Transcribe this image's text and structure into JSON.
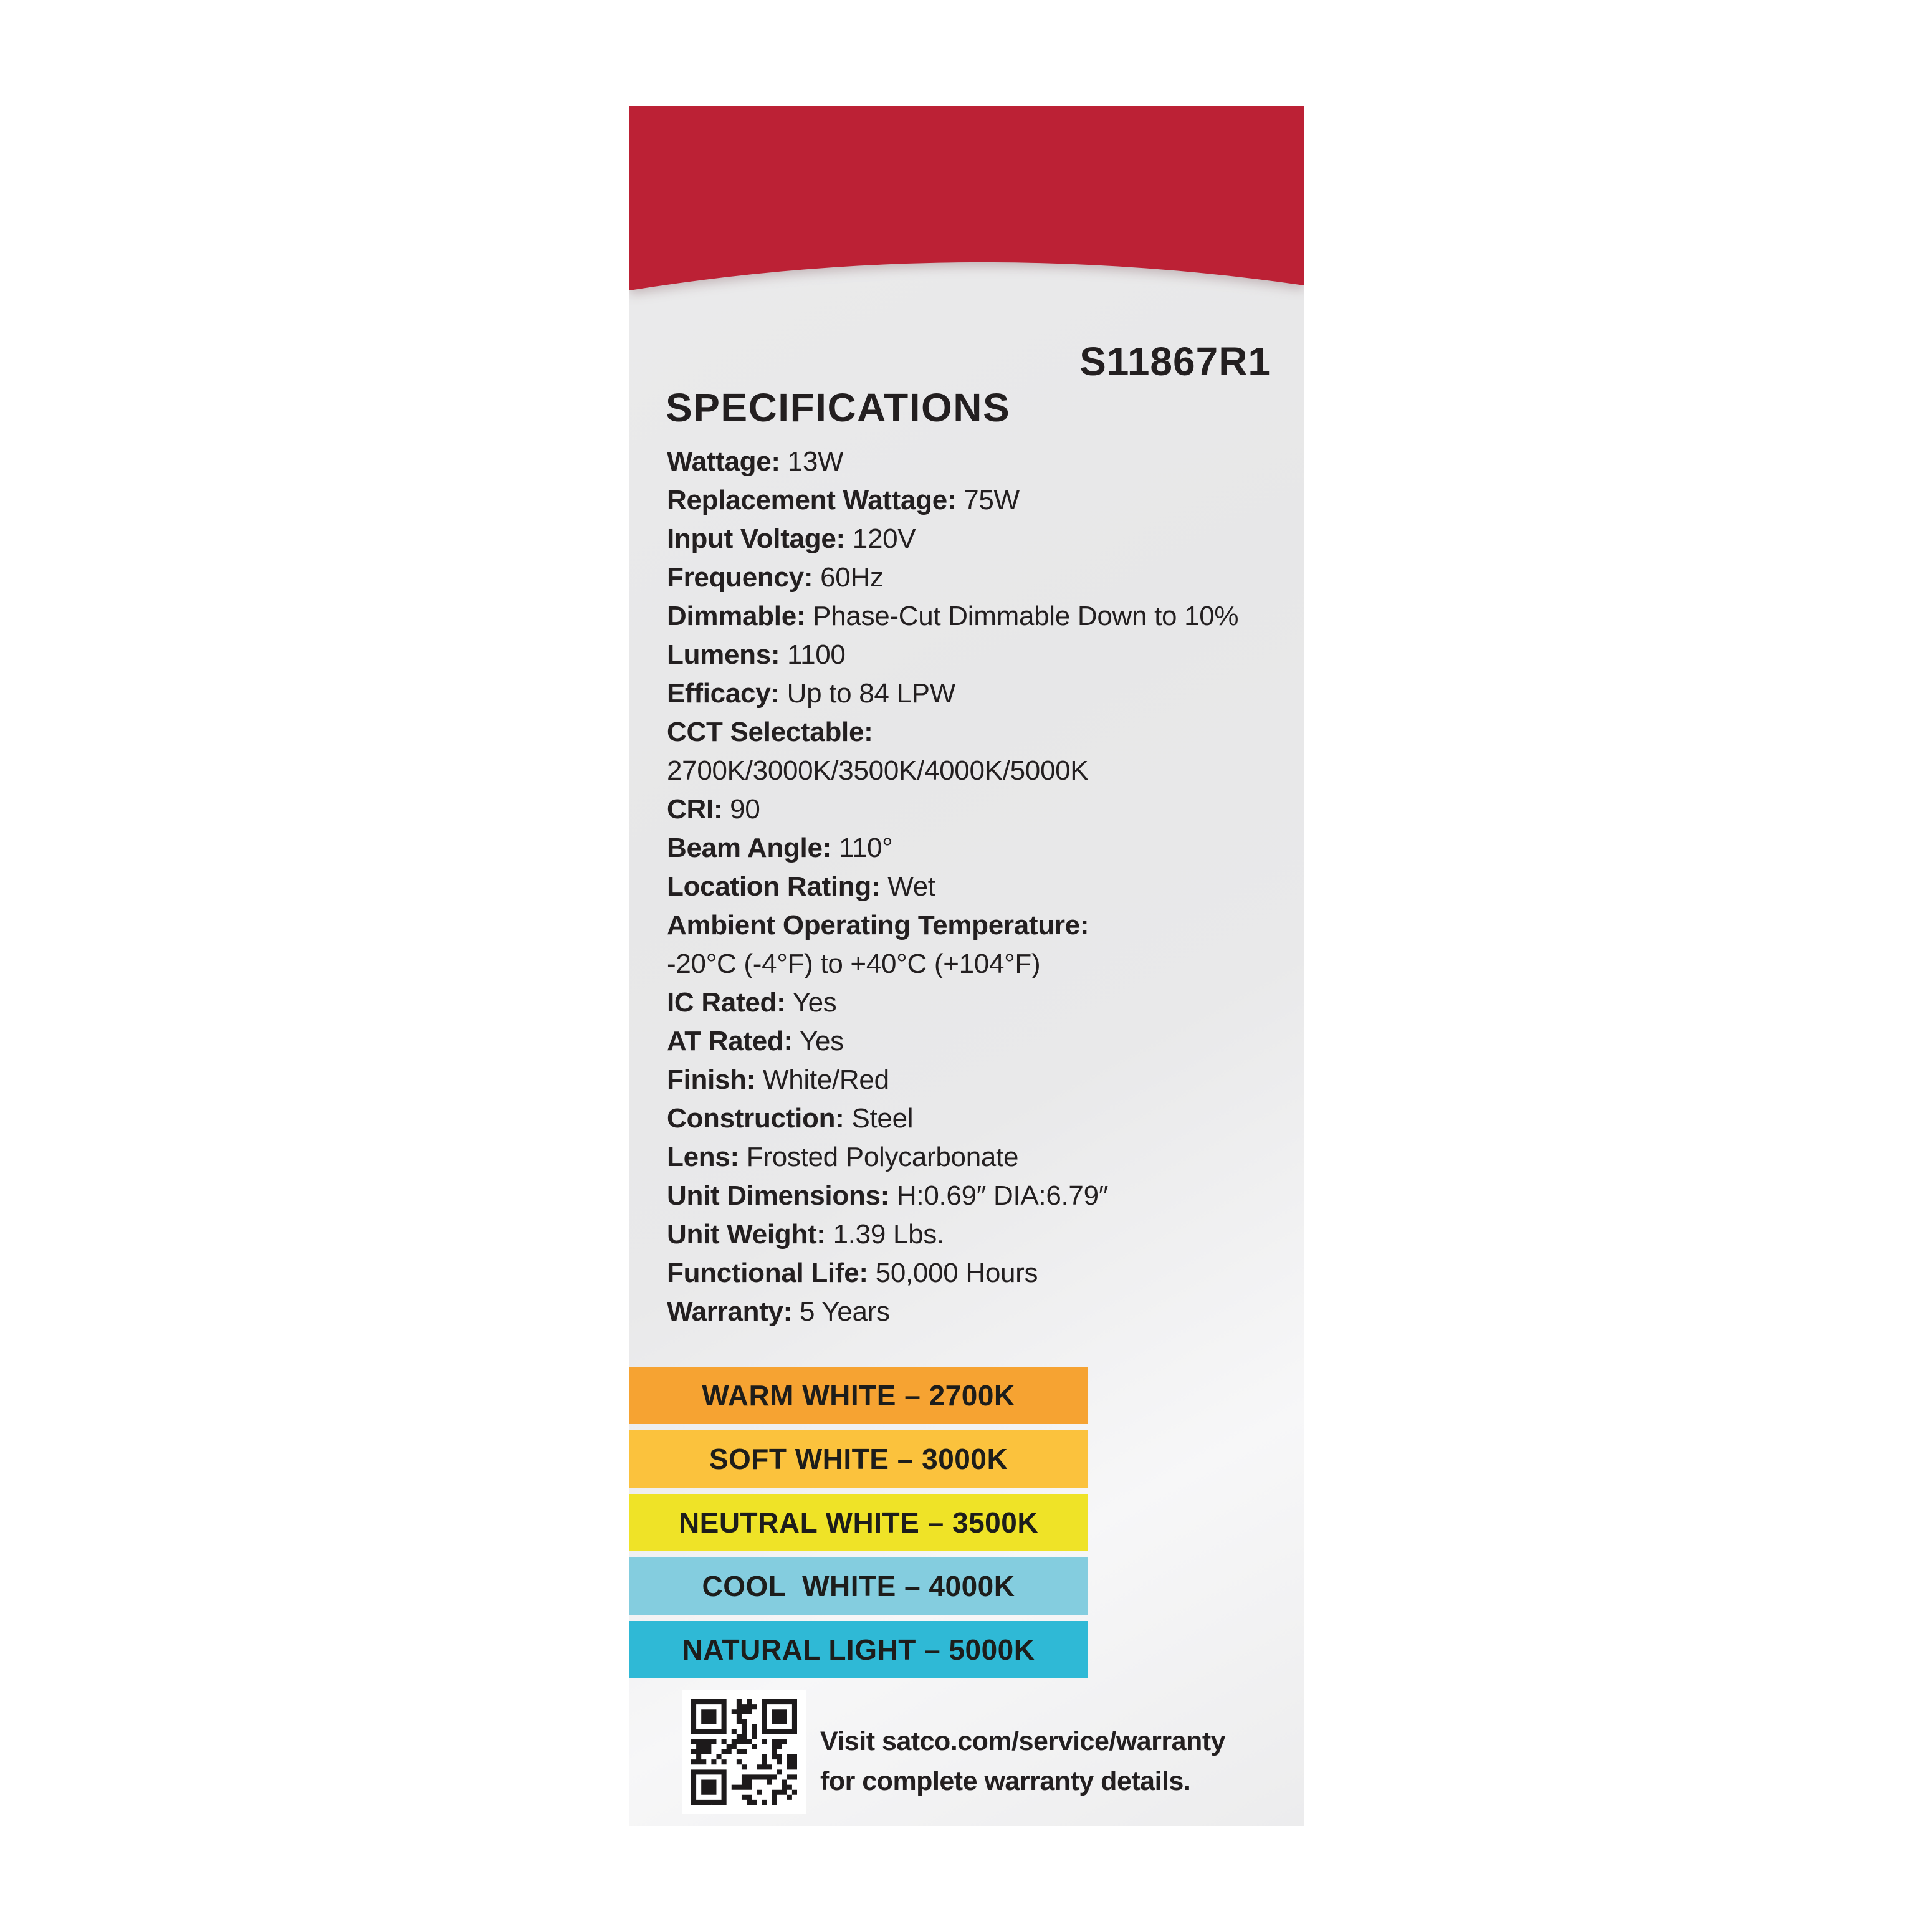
{
  "page": {
    "background": "#FFFFFF"
  },
  "label": {
    "product_code": "S11867R1",
    "heading": "SPECIFICATIONS",
    "brand_red": "#BC2135",
    "text_color": "#231F20",
    "specs": [
      {
        "label": "Wattage:",
        "value": "13W"
      },
      {
        "label": "Replacement Wattage:",
        "value": "75W"
      },
      {
        "label": "Input Voltage:",
        "value": "120V"
      },
      {
        "label": "Frequency:",
        "value": "60Hz"
      },
      {
        "label": "Dimmable:",
        "value": "Phase-Cut Dimmable Down to 10%"
      },
      {
        "label": "Lumens:",
        "value": "1100"
      },
      {
        "label": "Efficacy:",
        "value": "Up to 84 LPW"
      },
      {
        "label": "CCT Selectable:",
        "value": "2700K/3000K/3500K/4000K/5000K",
        "wrap": true
      },
      {
        "label": "CRI:",
        "value": "90"
      },
      {
        "label": "Beam Angle:",
        "value": "110°"
      },
      {
        "label": "Location Rating:",
        "value": "Wet"
      },
      {
        "label": "Ambient Operating Temperature:",
        "value": "-20°C (-4°F) to +40°C (+104°F)",
        "wrap": true
      },
      {
        "label": "IC Rated:",
        "value": "Yes"
      },
      {
        "label": "AT Rated:",
        "value": "Yes"
      },
      {
        "label": "Finish:",
        "value": "White/Red"
      },
      {
        "label": "Construction:",
        "value": "Steel"
      },
      {
        "label": "Lens:",
        "value": "Frosted Polycarbonate"
      },
      {
        "label": "Unit Dimensions:",
        "value": "H:0.69″ DIA:6.79″"
      },
      {
        "label": "Unit Weight:",
        "value": "1.39 Lbs."
      },
      {
        "label": "Functional Life:",
        "value": "50,000 Hours"
      },
      {
        "label": "Warranty:",
        "value": "5 Years"
      }
    ],
    "cct_bars": [
      {
        "label": "WARM WHITE – 2700K",
        "color": "#F6A332"
      },
      {
        "label": "SOFT WHITE – 3000K",
        "color": "#FBC23D"
      },
      {
        "label": "NEUTRAL WHITE – 3500K",
        "color": "#EFE327"
      },
      {
        "label": "COOL  WHITE – 4000K",
        "color": "#84CDDF"
      },
      {
        "label": "NATURAL LIGHT – 5000K",
        "color": "#2FB9D6"
      }
    ],
    "footer": {
      "qr_icon": "qr-code",
      "line1": "Visit satco.com/service/warranty",
      "line2": "for complete warranty details."
    }
  }
}
